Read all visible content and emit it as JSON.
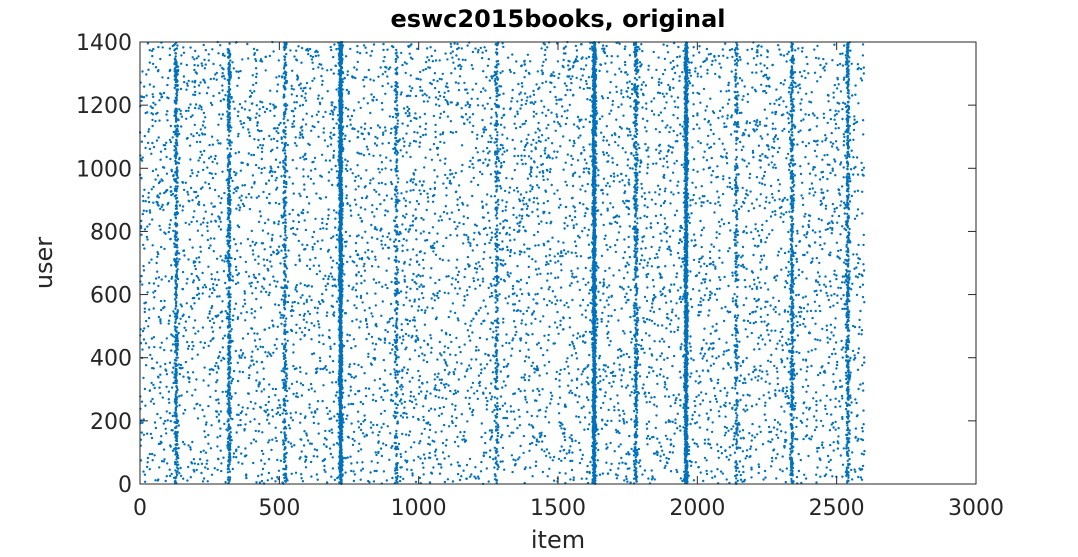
{
  "chart_data": {
    "type": "scatter",
    "title": "eswc2015books, original",
    "xlabel": "item",
    "ylabel": "user",
    "xlim": [
      0,
      3000
    ],
    "ylim": [
      0,
      1400
    ],
    "x_ticks": [
      0,
      500,
      1000,
      1500,
      2000,
      2500,
      3000
    ],
    "y_ticks": [
      0,
      200,
      400,
      600,
      800,
      1000,
      1200,
      1400
    ],
    "x_tick_labels": [
      "0",
      "500",
      "1000",
      "1500",
      "2000",
      "2500",
      "3000"
    ],
    "y_tick_labels": [
      "0",
      "200",
      "400",
      "600",
      "800",
      "1000",
      "1200",
      "1400"
    ],
    "grid": false,
    "marker_color": "#0072BD",
    "point_generation": {
      "x_range": [
        0,
        2600
      ],
      "y_range": [
        0,
        1400
      ],
      "background_points": 7000,
      "dense_columns": [
        {
          "x": 130,
          "points": 450
        },
        {
          "x": 320,
          "points": 500
        },
        {
          "x": 520,
          "points": 300
        },
        {
          "x": 720,
          "points": 1600
        },
        {
          "x": 920,
          "points": 250
        },
        {
          "x": 1280,
          "points": 250
        },
        {
          "x": 1630,
          "points": 1400
        },
        {
          "x": 1780,
          "points": 450
        },
        {
          "x": 1960,
          "points": 1200
        },
        {
          "x": 2140,
          "points": 250
        },
        {
          "x": 2340,
          "points": 450
        },
        {
          "x": 2540,
          "points": 450
        }
      ]
    }
  }
}
